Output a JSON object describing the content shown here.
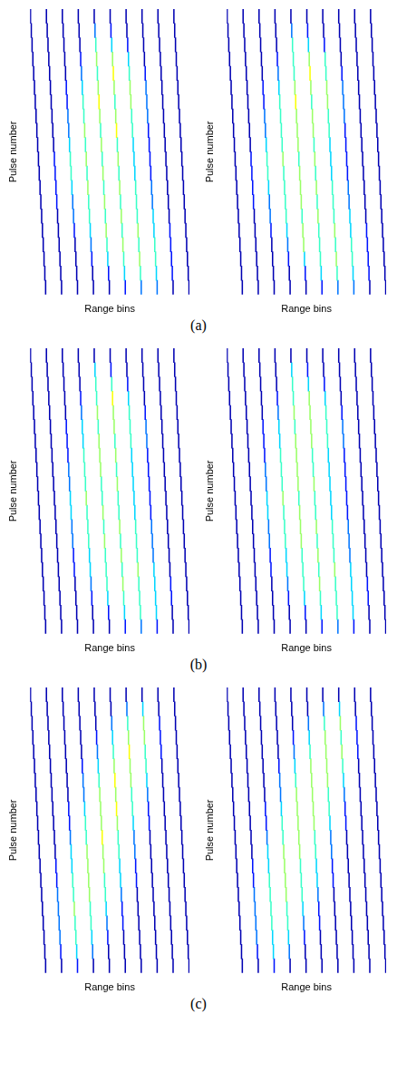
{
  "captions": [
    "(a)",
    "(b)",
    "(c)"
  ],
  "chart_data": [
    {
      "type": "heatmap",
      "x_label": "Range bins",
      "y_label": "Pulse number",
      "tick_labels": false,
      "cells": [
        [
          1,
          1,
          1,
          1,
          1,
          1,
          1,
          1,
          1,
          1
        ],
        [
          1,
          1,
          1,
          1,
          3,
          2,
          1,
          1,
          1,
          1
        ],
        [
          1,
          1,
          1,
          1,
          5,
          4,
          2,
          1,
          1,
          1
        ],
        [
          1,
          1,
          1,
          2,
          6,
          6,
          4,
          1,
          1,
          1
        ],
        [
          1,
          1,
          1,
          3,
          5,
          7,
          5,
          2,
          1,
          1
        ],
        [
          1,
          1,
          2,
          4,
          6,
          6,
          6,
          3,
          1,
          1
        ],
        [
          1,
          1,
          2,
          5,
          7,
          5,
          6,
          3,
          1,
          1
        ],
        [
          1,
          1,
          3,
          5,
          6,
          6,
          5,
          3,
          1,
          1
        ],
        [
          1,
          1,
          3,
          6,
          5,
          7,
          5,
          2,
          1,
          1
        ],
        [
          1,
          1,
          4,
          5,
          6,
          5,
          4,
          2,
          1,
          1
        ],
        [
          1,
          2,
          5,
          6,
          5,
          6,
          4,
          2,
          1,
          1
        ],
        [
          1,
          2,
          5,
          5,
          6,
          5,
          4,
          2,
          1,
          1
        ],
        [
          1,
          2,
          4,
          6,
          5,
          6,
          5,
          3,
          1,
          1
        ],
        [
          1,
          2,
          3,
          5,
          6,
          5,
          5,
          3,
          1,
          1
        ],
        [
          1,
          1,
          3,
          5,
          5,
          6,
          5,
          4,
          1,
          1
        ],
        [
          1,
          1,
          2,
          4,
          6,
          5,
          6,
          4,
          2,
          1
        ],
        [
          1,
          1,
          1,
          3,
          5,
          6,
          5,
          5,
          2,
          1
        ],
        [
          1,
          1,
          1,
          2,
          4,
          5,
          6,
          5,
          2,
          1
        ],
        [
          1,
          1,
          1,
          1,
          2,
          4,
          5,
          4,
          2,
          1
        ],
        [
          1,
          1,
          1,
          1,
          1,
          2,
          3,
          3,
          1,
          1
        ]
      ]
    },
    {
      "type": "heatmap",
      "x_label": "Range bins",
      "y_label": "Pulse number",
      "tick_labels": false,
      "cells": [
        [
          1,
          1,
          1,
          1,
          1,
          1,
          1,
          1,
          1,
          1
        ],
        [
          1,
          1,
          1,
          1,
          3,
          2,
          1,
          1,
          1,
          1
        ],
        [
          1,
          1,
          1,
          1,
          5,
          4,
          2,
          1,
          1,
          1
        ],
        [
          1,
          1,
          1,
          2,
          5,
          6,
          5,
          1,
          1,
          1
        ],
        [
          1,
          1,
          1,
          3,
          5,
          7,
          5,
          2,
          1,
          1
        ],
        [
          1,
          1,
          2,
          4,
          6,
          6,
          6,
          3,
          1,
          1
        ],
        [
          1,
          1,
          2,
          5,
          7,
          5,
          6,
          3,
          1,
          1
        ],
        [
          1,
          1,
          3,
          5,
          6,
          6,
          5,
          3,
          1,
          1
        ],
        [
          1,
          1,
          3,
          5,
          6,
          6,
          5,
          2,
          1,
          1
        ],
        [
          1,
          1,
          4,
          5,
          6,
          5,
          4,
          2,
          1,
          1
        ],
        [
          1,
          2,
          5,
          6,
          5,
          6,
          4,
          2,
          1,
          1
        ],
        [
          1,
          2,
          5,
          5,
          6,
          5,
          4,
          2,
          1,
          1
        ],
        [
          1,
          2,
          4,
          5,
          6,
          6,
          5,
          3,
          1,
          1
        ],
        [
          1,
          2,
          3,
          5,
          6,
          5,
          5,
          3,
          1,
          1
        ],
        [
          1,
          1,
          3,
          5,
          5,
          6,
          5,
          4,
          1,
          1
        ],
        [
          1,
          1,
          2,
          4,
          6,
          5,
          6,
          4,
          2,
          1
        ],
        [
          1,
          1,
          1,
          3,
          6,
          5,
          5,
          5,
          2,
          1
        ],
        [
          1,
          1,
          1,
          2,
          4,
          5,
          6,
          5,
          2,
          1
        ],
        [
          1,
          1,
          1,
          1,
          2,
          4,
          5,
          4,
          2,
          1
        ],
        [
          1,
          1,
          1,
          1,
          1,
          2,
          3,
          3,
          1,
          1
        ]
      ]
    },
    {
      "type": "heatmap",
      "x_label": "Range bins",
      "y_label": "Pulse number",
      "tick_labels": false,
      "cells": [
        [
          1,
          1,
          1,
          1,
          1,
          1,
          1,
          1,
          1,
          1
        ],
        [
          1,
          1,
          1,
          1,
          4,
          2,
          1,
          1,
          1,
          1
        ],
        [
          1,
          1,
          1,
          1,
          5,
          5,
          2,
          1,
          1,
          1
        ],
        [
          1,
          1,
          1,
          2,
          5,
          7,
          4,
          1,
          1,
          1
        ],
        [
          1,
          1,
          1,
          3,
          6,
          6,
          5,
          2,
          1,
          1
        ],
        [
          1,
          1,
          2,
          4,
          5,
          6,
          5,
          3,
          1,
          1
        ],
        [
          1,
          1,
          2,
          4,
          6,
          5,
          5,
          3,
          1,
          1
        ],
        [
          1,
          1,
          2,
          5,
          6,
          6,
          4,
          2,
          1,
          1
        ],
        [
          1,
          1,
          3,
          5,
          6,
          5,
          4,
          2,
          1,
          1
        ],
        [
          1,
          1,
          3,
          5,
          5,
          6,
          4,
          2,
          1,
          1
        ],
        [
          1,
          1,
          4,
          6,
          5,
          5,
          4,
          2,
          1,
          1
        ],
        [
          1,
          1,
          4,
          5,
          6,
          5,
          4,
          2,
          1,
          1
        ],
        [
          1,
          1,
          3,
          5,
          5,
          6,
          5,
          3,
          1,
          1
        ],
        [
          1,
          1,
          3,
          5,
          6,
          5,
          5,
          3,
          1,
          1
        ],
        [
          1,
          1,
          2,
          4,
          5,
          6,
          5,
          3,
          1,
          1
        ],
        [
          1,
          1,
          2,
          4,
          5,
          5,
          6,
          4,
          1,
          1
        ],
        [
          1,
          1,
          1,
          3,
          5,
          6,
          5,
          4,
          2,
          1
        ],
        [
          1,
          1,
          1,
          2,
          4,
          5,
          5,
          4,
          2,
          1
        ],
        [
          1,
          1,
          1,
          1,
          2,
          4,
          5,
          4,
          1,
          1
        ],
        [
          1,
          1,
          1,
          1,
          1,
          2,
          3,
          2,
          1,
          1
        ]
      ]
    },
    {
      "type": "heatmap",
      "x_label": "Range bins",
      "y_label": "Pulse number",
      "tick_labels": false,
      "cells": [
        [
          1,
          1,
          1,
          1,
          1,
          1,
          1,
          1,
          1,
          1
        ],
        [
          1,
          1,
          1,
          1,
          4,
          2,
          1,
          1,
          1,
          1
        ],
        [
          1,
          1,
          1,
          1,
          5,
          4,
          2,
          1,
          1,
          1
        ],
        [
          1,
          1,
          1,
          2,
          5,
          6,
          4,
          1,
          1,
          1
        ],
        [
          1,
          1,
          1,
          3,
          6,
          6,
          5,
          2,
          1,
          1
        ],
        [
          1,
          1,
          2,
          4,
          5,
          6,
          5,
          3,
          1,
          1
        ],
        [
          1,
          1,
          2,
          4,
          6,
          6,
          5,
          3,
          1,
          1
        ],
        [
          1,
          1,
          2,
          5,
          6,
          5,
          4,
          2,
          1,
          1
        ],
        [
          1,
          1,
          3,
          5,
          6,
          5,
          4,
          2,
          1,
          1
        ],
        [
          1,
          1,
          3,
          5,
          6,
          6,
          4,
          2,
          1,
          1
        ],
        [
          1,
          1,
          4,
          6,
          5,
          5,
          4,
          2,
          1,
          1
        ],
        [
          1,
          1,
          4,
          5,
          6,
          5,
          4,
          2,
          1,
          1
        ],
        [
          1,
          1,
          3,
          5,
          6,
          6,
          5,
          3,
          1,
          1
        ],
        [
          1,
          1,
          3,
          5,
          6,
          5,
          5,
          3,
          1,
          1
        ],
        [
          1,
          1,
          2,
          4,
          5,
          6,
          5,
          3,
          1,
          1
        ],
        [
          1,
          1,
          2,
          4,
          5,
          5,
          6,
          4,
          1,
          1
        ],
        [
          1,
          1,
          1,
          3,
          5,
          6,
          5,
          4,
          2,
          1
        ],
        [
          1,
          1,
          1,
          2,
          4,
          5,
          5,
          4,
          2,
          1
        ],
        [
          1,
          1,
          1,
          1,
          2,
          4,
          5,
          4,
          1,
          1
        ],
        [
          1,
          1,
          1,
          1,
          1,
          2,
          3,
          2,
          1,
          1
        ]
      ]
    },
    {
      "type": "heatmap",
      "x_label": "Range bins",
      "y_label": "Pulse number",
      "tick_labels": false,
      "cells": [
        [
          1,
          1,
          1,
          1,
          1,
          1,
          1,
          1,
          1,
          1
        ],
        [
          1,
          1,
          1,
          1,
          1,
          1,
          3,
          4,
          1,
          1
        ],
        [
          1,
          1,
          1,
          1,
          1,
          3,
          5,
          6,
          2,
          1
        ],
        [
          1,
          1,
          1,
          1,
          2,
          4,
          6,
          6,
          2,
          1
        ],
        [
          1,
          1,
          1,
          1,
          3,
          5,
          7,
          5,
          2,
          1
        ],
        [
          1,
          1,
          1,
          2,
          4,
          6,
          6,
          5,
          1,
          1
        ],
        [
          1,
          1,
          1,
          3,
          5,
          7,
          6,
          4,
          1,
          1
        ],
        [
          1,
          1,
          1,
          3,
          6,
          6,
          5,
          3,
          1,
          1
        ],
        [
          1,
          1,
          2,
          4,
          6,
          7,
          5,
          2,
          1,
          1
        ],
        [
          1,
          1,
          2,
          5,
          6,
          6,
          4,
          2,
          1,
          1
        ],
        [
          1,
          1,
          3,
          5,
          7,
          5,
          3,
          1,
          1,
          1
        ],
        [
          1,
          1,
          4,
          6,
          6,
          5,
          3,
          1,
          1,
          1
        ],
        [
          1,
          2,
          4,
          6,
          6,
          4,
          2,
          1,
          1,
          1
        ],
        [
          1,
          2,
          5,
          6,
          5,
          4,
          2,
          1,
          1,
          1
        ],
        [
          1,
          3,
          5,
          6,
          5,
          3,
          1,
          1,
          1,
          1
        ],
        [
          1,
          3,
          6,
          5,
          4,
          2,
          1,
          1,
          1,
          1
        ],
        [
          1,
          3,
          5,
          5,
          3,
          2,
          1,
          1,
          1,
          1
        ],
        [
          1,
          3,
          5,
          4,
          2,
          1,
          1,
          1,
          1,
          1
        ],
        [
          1,
          2,
          4,
          3,
          1,
          1,
          1,
          1,
          1,
          1
        ],
        [
          1,
          1,
          2,
          1,
          1,
          1,
          1,
          1,
          1,
          1
        ]
      ]
    },
    {
      "type": "heatmap",
      "x_label": "Range bins",
      "y_label": "Pulse number",
      "tick_labels": false,
      "cells": [
        [
          1,
          1,
          1,
          1,
          1,
          1,
          1,
          1,
          1,
          1
        ],
        [
          1,
          1,
          1,
          1,
          1,
          1,
          3,
          4,
          1,
          1
        ],
        [
          1,
          1,
          1,
          1,
          1,
          3,
          5,
          6,
          2,
          1
        ],
        [
          1,
          1,
          1,
          1,
          2,
          4,
          6,
          5,
          2,
          1
        ],
        [
          1,
          1,
          1,
          1,
          3,
          5,
          6,
          6,
          2,
          1
        ],
        [
          1,
          1,
          1,
          2,
          4,
          6,
          6,
          5,
          1,
          1
        ],
        [
          1,
          1,
          1,
          3,
          5,
          6,
          6,
          4,
          1,
          1
        ],
        [
          1,
          1,
          1,
          3,
          6,
          6,
          5,
          3,
          1,
          1
        ],
        [
          1,
          1,
          2,
          4,
          6,
          6,
          5,
          2,
          1,
          1
        ],
        [
          1,
          1,
          2,
          5,
          6,
          6,
          4,
          2,
          1,
          1
        ],
        [
          1,
          1,
          3,
          5,
          6,
          5,
          3,
          1,
          1,
          1
        ],
        [
          1,
          1,
          4,
          6,
          6,
          5,
          3,
          1,
          1,
          1
        ],
        [
          1,
          2,
          4,
          6,
          5,
          4,
          2,
          1,
          1,
          1
        ],
        [
          1,
          2,
          5,
          6,
          5,
          4,
          2,
          1,
          1,
          1
        ],
        [
          1,
          3,
          5,
          6,
          5,
          3,
          1,
          1,
          1,
          1
        ],
        [
          1,
          3,
          5,
          5,
          4,
          2,
          1,
          1,
          1,
          1
        ],
        [
          1,
          3,
          5,
          5,
          3,
          2,
          1,
          1,
          1,
          1
        ],
        [
          1,
          3,
          4,
          4,
          2,
          1,
          1,
          1,
          1,
          1
        ],
        [
          1,
          2,
          4,
          3,
          1,
          1,
          1,
          1,
          1,
          1
        ],
        [
          1,
          1,
          2,
          1,
          1,
          1,
          1,
          1,
          1,
          1
        ]
      ]
    }
  ]
}
